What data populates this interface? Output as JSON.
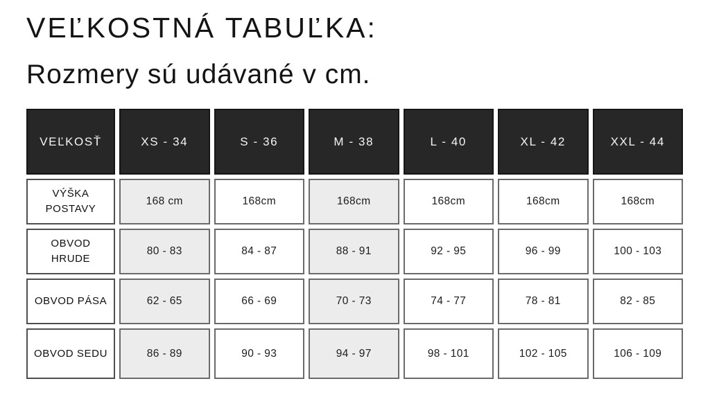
{
  "title": "VEĽKOSTNÁ TABUĽKA:",
  "subtitle": "Rozmery sú udávané v cm.",
  "table": {
    "header": [
      "VEĽKOSŤ",
      "XS - 34",
      "S - 36",
      "M - 38",
      "L - 40",
      "XL - 42",
      "XXL - 44"
    ],
    "rows": [
      {
        "label": "VÝŠKA POSTAVY",
        "values": [
          "168 cm",
          "168cm",
          "168cm",
          "168cm",
          "168cm",
          "168cm"
        ]
      },
      {
        "label": "OBVOD HRUDE",
        "values": [
          "80 - 83",
          "84 - 87",
          "88 - 91",
          "92 - 95",
          "96 - 99",
          "100 - 103"
        ]
      },
      {
        "label": "OBVOD PÁSA",
        "values": [
          "62 - 65",
          "66 - 69",
          "70 - 73",
          "74 - 77",
          "78 - 81",
          "82 - 85"
        ]
      },
      {
        "label": "OBVOD SEDU",
        "values": [
          "86 - 89",
          "90 - 93",
          "94 - 97",
          "98 - 101",
          "102 - 105",
          "106 - 109"
        ]
      }
    ],
    "shaded_size_columns": [
      "XS - 34",
      "M - 38"
    ]
  },
  "colors": {
    "header_bg": "#272727",
    "header_text": "#f5f5f5",
    "shaded_cell_bg": "#ececec",
    "cell_border": "#6a6a6a",
    "label_border": "#4e4e4e",
    "text": "#141414",
    "background": "#ffffff"
  }
}
